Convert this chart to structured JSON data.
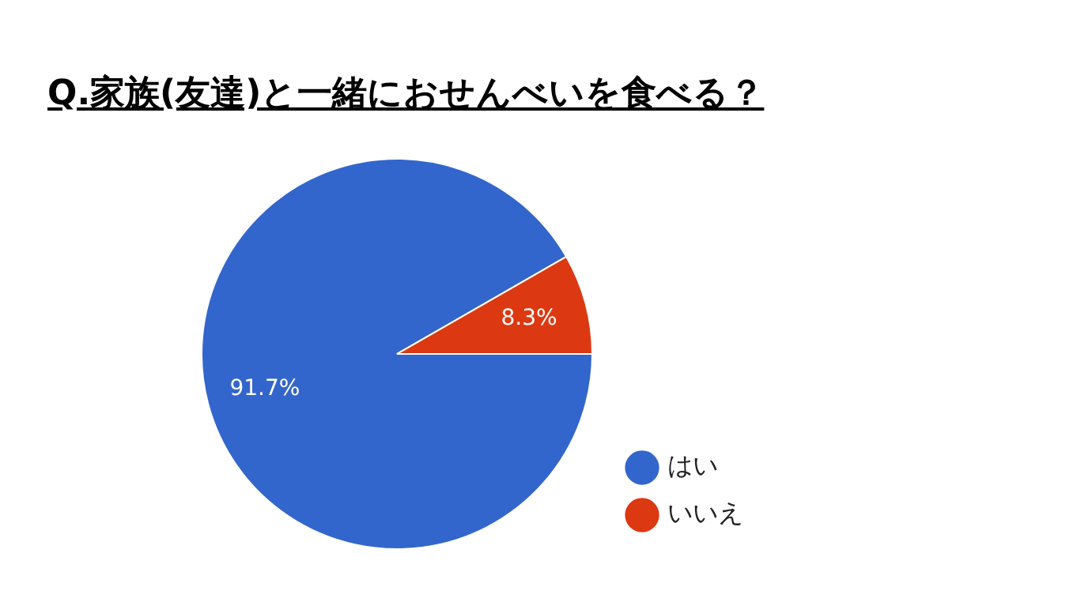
{
  "chart_data": {
    "type": "pie",
    "title": "Q.家族(友達)と一緒におせんべいを食べる？",
    "categories": [
      "はい",
      "いいえ"
    ],
    "values": [
      91.7,
      8.3
    ],
    "colors": [
      "#3366cc",
      "#dc3912"
    ],
    "value_labels": [
      "91.7%",
      "8.3%"
    ],
    "legend": "right"
  }
}
